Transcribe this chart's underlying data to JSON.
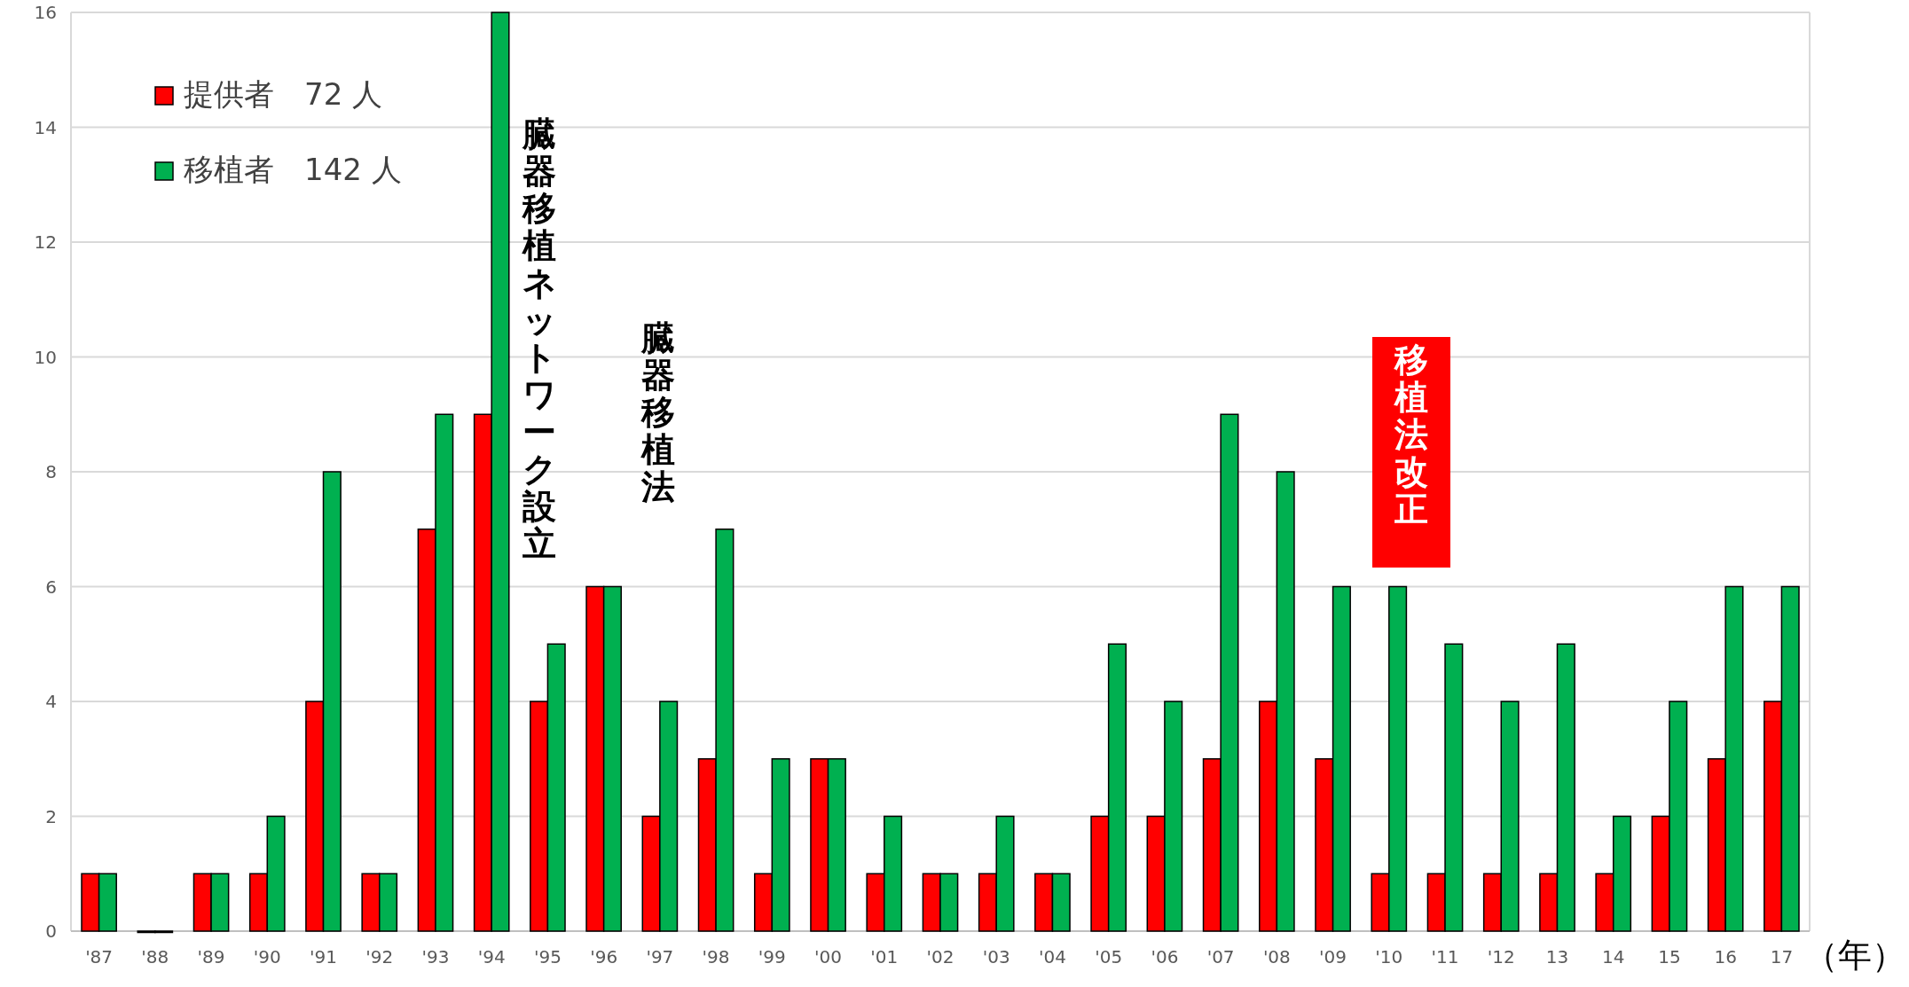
{
  "chart_data": {
    "type": "bar",
    "xlabel": "（年）",
    "categories": [
      "'87",
      "'88",
      "'89",
      "'90",
      "'91",
      "'92",
      "'93",
      "'94",
      "'95",
      "'96",
      "'97",
      "'98",
      "'99",
      "'00",
      "'01",
      "'02",
      "'03",
      "'04",
      "'05",
      "'06",
      "'07",
      "'08",
      "'09",
      "'10",
      "'11",
      "'12",
      "13",
      "14",
      "15",
      "16",
      "17"
    ],
    "series": [
      {
        "name": "提供者　72 人",
        "color": "#ff0000",
        "values": [
          1,
          0,
          1,
          1,
          4,
          1,
          7,
          9,
          4,
          6,
          2,
          3,
          1,
          3,
          1,
          1,
          1,
          1,
          2,
          2,
          3,
          4,
          3,
          1,
          1,
          1,
          1,
          1,
          2,
          3,
          4
        ]
      },
      {
        "name": "移植者　142 人",
        "color": "#00b050",
        "values": [
          1,
          0,
          1,
          2,
          8,
          1,
          9,
          16,
          5,
          6,
          4,
          7,
          3,
          3,
          2,
          1,
          2,
          1,
          5,
          4,
          9,
          8,
          6,
          6,
          5,
          4,
          5,
          2,
          4,
          6,
          6
        ]
      }
    ],
    "ylim": [
      0,
      16
    ],
    "yticks": [
      0,
      2,
      4,
      6,
      8,
      10,
      12,
      14,
      16
    ],
    "grid": "y",
    "legend": "top left",
    "annotations": [
      "臓器移植ネットワーク設立",
      "臓器移植法",
      "移植法改正"
    ]
  }
}
